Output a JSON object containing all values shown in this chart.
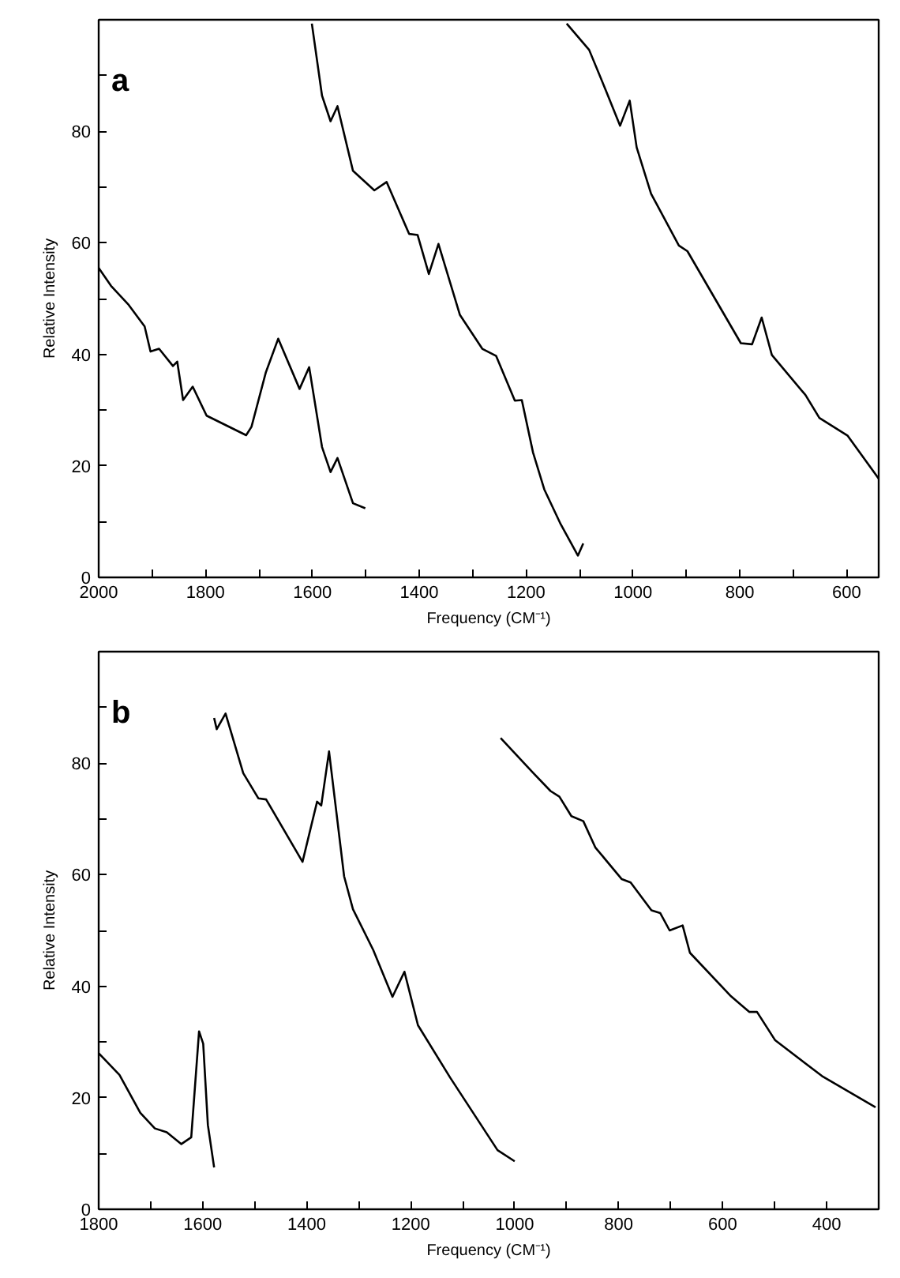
{
  "chart_data": [
    {
      "type": "line",
      "annotations": [
        "a"
      ],
      "xlabel": "Frequency (CM⁻¹)",
      "ylabel": "Relative Intensity",
      "grid": false,
      "marker": "none",
      "line_style": "solid",
      "xlim": [
        2000,
        540
      ],
      "ylim": [
        0,
        100
      ],
      "xticks": [
        2000,
        {
          "value": 1900,
          "label": null
        },
        1800,
        {
          "value": 1700,
          "label": null
        },
        1600,
        {
          "value": 1500,
          "label": null
        },
        1400,
        {
          "value": 1300,
          "label": null
        },
        1200,
        {
          "value": 1100,
          "label": null
        },
        1000,
        {
          "value": 900,
          "label": null
        },
        800,
        {
          "value": 700,
          "label": null
        },
        600
      ],
      "yticks": [
        0,
        {
          "value": 10,
          "label": null
        },
        20,
        {
          "value": 30,
          "label": null
        },
        40,
        {
          "value": 50,
          "label": null
        },
        60,
        {
          "value": 70,
          "label": null
        },
        80,
        {
          "value": 90,
          "label": null
        }
      ],
      "series": [
        {
          "color": "#000000",
          "x": [
            2000,
            1977,
            1945,
            1914,
            1903,
            1887,
            1861,
            1853,
            1842,
            1824,
            1798,
            1724,
            1714,
            1687,
            1664,
            1624,
            1606,
            1582,
            1566,
            1553,
            1524,
            1501
          ],
          "values": [
            55.5,
            52.3,
            49,
            45,
            40.5,
            41,
            37.9,
            38.7,
            31.8,
            34.2,
            29,
            25.5,
            27,
            36.8,
            42.8,
            33.8,
            37.7,
            23.4,
            18.9,
            21.4,
            13.3,
            12.4
          ]
        },
        {
          "color": "#000000",
          "x": [
            1601,
            1582,
            1566,
            1553,
            1524,
            1484,
            1461,
            1419,
            1403,
            1382,
            1364,
            1324,
            1282,
            1256,
            1221,
            1208,
            1187,
            1166,
            1135,
            1103,
            1093
          ],
          "values": [
            99.3,
            86.4,
            81.8,
            84.5,
            72.9,
            69.4,
            70.9,
            61.6,
            61.4,
            54.4,
            59.8,
            47.1,
            41,
            39.7,
            31.7,
            31.8,
            22.4,
            15.8,
            9.5,
            3.9,
            6.1
          ]
        },
        {
          "color": "#000000",
          "x": [
            1124,
            1082,
            1051,
            1024,
            1006,
            993,
            966,
            914,
            898,
            798,
            777,
            759,
            740,
            677,
            651,
            598,
            540
          ],
          "values": [
            99.3,
            94.6,
            87.4,
            81,
            85.5,
            77.1,
            68.8,
            59.5,
            58.5,
            42,
            41.8,
            46.6,
            39.9,
            32.7,
            28.6,
            25.4,
            17.7
          ]
        }
      ]
    },
    {
      "type": "line",
      "annotations": [
        "b"
      ],
      "xlabel": "Frequency (CM⁻¹)",
      "ylabel": "Relative Intensity",
      "grid": false,
      "marker": "none",
      "line_style": "solid",
      "xlim": [
        1800,
        300
      ],
      "ylim": [
        0,
        100
      ],
      "xticks": [
        1800,
        {
          "value": 1700,
          "label": null
        },
        1600,
        {
          "value": 1500,
          "label": null
        },
        1400,
        {
          "value": 1300,
          "label": null
        },
        1200,
        {
          "value": 1100,
          "label": null
        },
        1000,
        {
          "value": 900,
          "label": null
        },
        800,
        {
          "value": 700,
          "label": null
        },
        600,
        {
          "value": 500,
          "label": null
        },
        400
      ],
      "yticks": [
        0,
        {
          "value": 10,
          "label": null
        },
        20,
        {
          "value": 30,
          "label": null
        },
        40,
        {
          "value": 50,
          "label": null
        },
        60,
        {
          "value": 70,
          "label": null
        },
        80,
        {
          "value": 90,
          "label": null
        }
      ],
      "series": [
        {
          "color": "#000000",
          "x": [
            1800,
            1760,
            1720,
            1692,
            1669,
            1641,
            1622,
            1607,
            1599,
            1590,
            1578
          ],
          "values": [
            28,
            24.1,
            17.3,
            14.5,
            13.8,
            11.7,
            12.9,
            31.9,
            29.7,
            15.1,
            7.5
          ]
        },
        {
          "color": "#000000",
          "x": [
            1578,
            1573,
            1556,
            1522,
            1493,
            1478,
            1408,
            1380,
            1372,
            1357,
            1328,
            1311,
            1272,
            1235,
            1212,
            1186,
            1124,
            1033,
            1000
          ],
          "values": [
            88.1,
            86.1,
            88.9,
            78.2,
            73.7,
            73.5,
            62.3,
            73.1,
            72.4,
            82.1,
            59.7,
            53.8,
            46.5,
            38.1,
            42.6,
            33,
            23.6,
            10.6,
            8.6
          ]
        },
        {
          "color": "#000000",
          "x": [
            1027,
            965,
            931,
            914,
            891,
            868,
            845,
            794,
            777,
            737,
            720,
            702,
            677,
            663,
            584,
            549,
            534,
            499,
            409,
            306
          ],
          "values": [
            84.5,
            78.3,
            75,
            74,
            70.5,
            69.6,
            64.9,
            59.2,
            58.6,
            53.6,
            53.1,
            50,
            50.9,
            46,
            38.2,
            35.4,
            35.4,
            30.3,
            23.9,
            18.3
          ]
        }
      ]
    }
  ]
}
